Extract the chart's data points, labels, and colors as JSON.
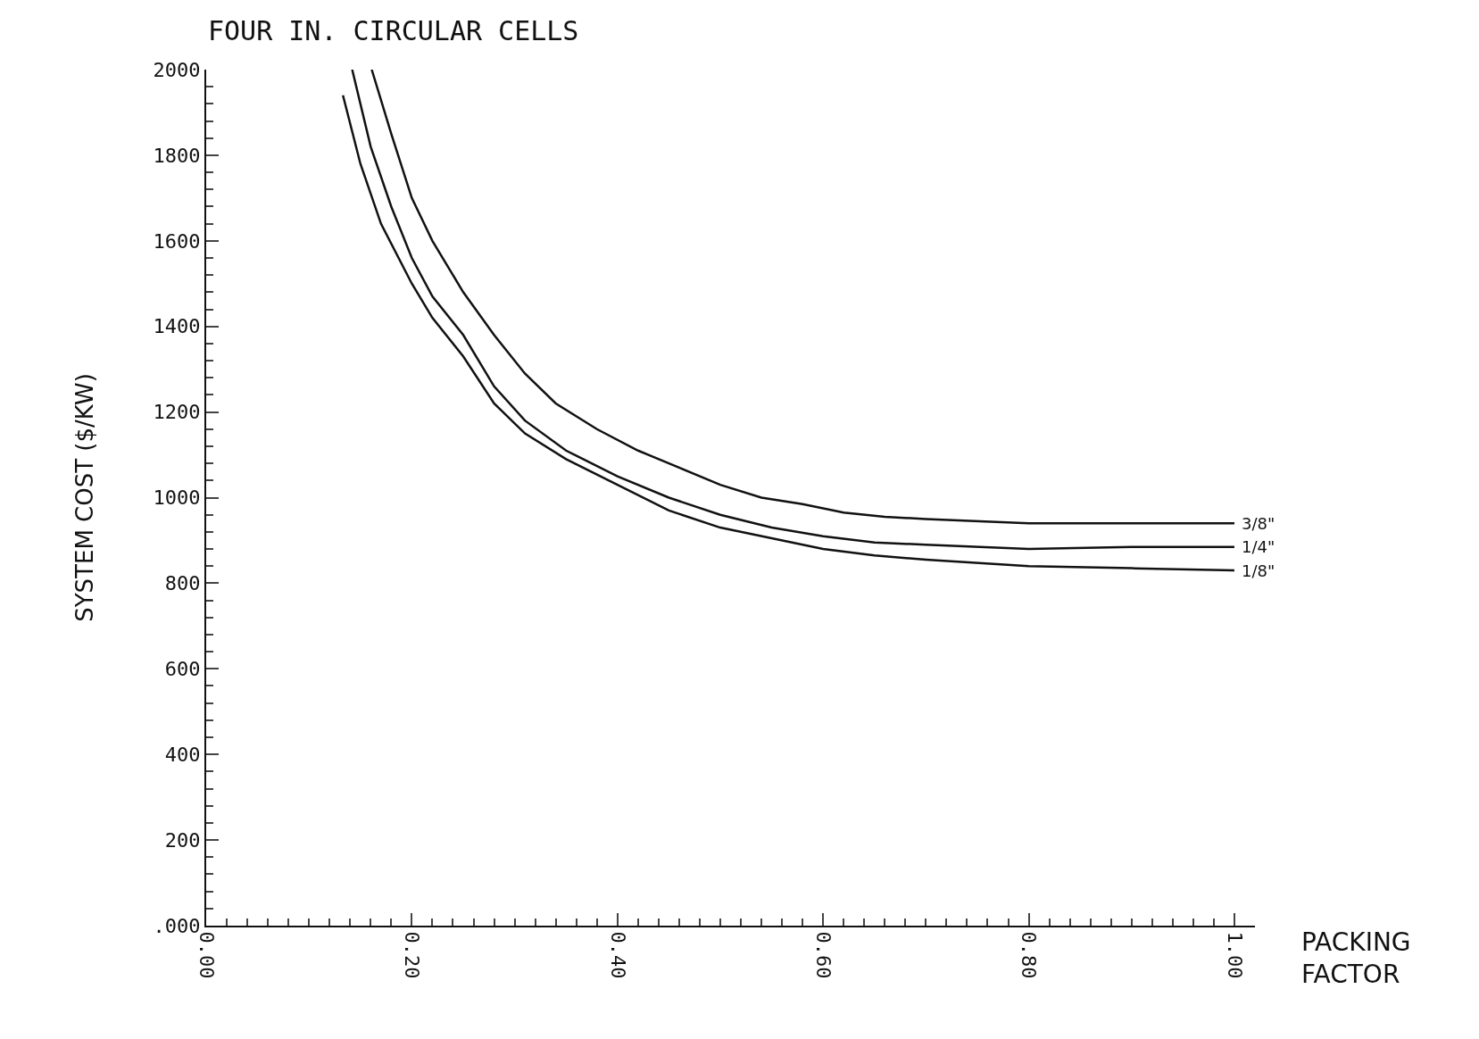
{
  "chart_data": {
    "type": "line",
    "title": "FOUR IN. CIRCULAR CELLS",
    "xlabel": "PACKING FACTOR",
    "ylabel": "SYSTEM COST ($/KW)",
    "xlim": [
      0,
      1.02
    ],
    "ylim": [
      0,
      2000
    ],
    "grid": false,
    "legend": false,
    "marker": "none",
    "line_style": "solid",
    "xticks": [
      {
        "value": 0,
        "label": "0.00"
      },
      {
        "value": 0.2,
        "label": "0.20"
      },
      {
        "value": 0.4,
        "label": "0.40"
      },
      {
        "value": 0.6,
        "label": "0.60"
      },
      {
        "value": 0.8,
        "label": "0.80"
      },
      {
        "value": 1,
        "label": "1.00"
      },
      {
        "value": 0.02,
        "label": null
      },
      {
        "value": 0.04,
        "label": null
      },
      {
        "value": 0.06,
        "label": null
      },
      {
        "value": 0.08,
        "label": null
      },
      {
        "value": 0.1,
        "label": null
      },
      {
        "value": 0.12,
        "label": null
      },
      {
        "value": 0.14,
        "label": null
      },
      {
        "value": 0.16,
        "label": null
      },
      {
        "value": 0.18,
        "label": null
      },
      {
        "value": 0.22,
        "label": null
      },
      {
        "value": 0.24,
        "label": null
      },
      {
        "value": 0.26,
        "label": null
      },
      {
        "value": 0.28,
        "label": null
      },
      {
        "value": 0.3,
        "label": null
      },
      {
        "value": 0.32,
        "label": null
      },
      {
        "value": 0.34,
        "label": null
      },
      {
        "value": 0.36,
        "label": null
      },
      {
        "value": 0.38,
        "label": null
      },
      {
        "value": 0.42,
        "label": null
      },
      {
        "value": 0.44,
        "label": null
      },
      {
        "value": 0.46,
        "label": null
      },
      {
        "value": 0.48,
        "label": null
      },
      {
        "value": 0.5,
        "label": null
      },
      {
        "value": 0.52,
        "label": null
      },
      {
        "value": 0.54,
        "label": null
      },
      {
        "value": 0.56,
        "label": null
      },
      {
        "value": 0.58,
        "label": null
      },
      {
        "value": 0.62,
        "label": null
      },
      {
        "value": 0.64,
        "label": null
      },
      {
        "value": 0.66,
        "label": null
      },
      {
        "value": 0.68,
        "label": null
      },
      {
        "value": 0.7,
        "label": null
      },
      {
        "value": 0.72,
        "label": null
      },
      {
        "value": 0.74,
        "label": null
      },
      {
        "value": 0.76,
        "label": null
      },
      {
        "value": 0.78,
        "label": null
      },
      {
        "value": 0.82,
        "label": null
      },
      {
        "value": 0.84,
        "label": null
      },
      {
        "value": 0.86,
        "label": null
      },
      {
        "value": 0.88,
        "label": null
      },
      {
        "value": 0.9,
        "label": null
      },
      {
        "value": 0.92,
        "label": null
      },
      {
        "value": 0.94,
        "label": null
      },
      {
        "value": 0.96,
        "label": null
      },
      {
        "value": 0.98,
        "label": null
      }
    ],
    "yticks": [
      {
        "value": 0,
        "label": ".000"
      },
      200,
      400,
      600,
      800,
      1000,
      1200,
      1400,
      1600,
      1800,
      2000,
      {
        "value": 40,
        "label": null
      },
      {
        "value": 80,
        "label": null
      },
      {
        "value": 120,
        "label": null
      },
      {
        "value": 160,
        "label": null
      },
      {
        "value": 240,
        "label": null
      },
      {
        "value": 280,
        "label": null
      },
      {
        "value": 320,
        "label": null
      },
      {
        "value": 360,
        "label": null
      },
      {
        "value": 440,
        "label": null
      },
      {
        "value": 480,
        "label": null
      },
      {
        "value": 520,
        "label": null
      },
      {
        "value": 560,
        "label": null
      },
      {
        "value": 640,
        "label": null
      },
      {
        "value": 680,
        "label": null
      },
      {
        "value": 720,
        "label": null
      },
      {
        "value": 760,
        "label": null
      },
      {
        "value": 840,
        "label": null
      },
      {
        "value": 880,
        "label": null
      },
      {
        "value": 920,
        "label": null
      },
      {
        "value": 960,
        "label": null
      },
      {
        "value": 1040,
        "label": null
      },
      {
        "value": 1080,
        "label": null
      },
      {
        "value": 1120,
        "label": null
      },
      {
        "value": 1160,
        "label": null
      },
      {
        "value": 1240,
        "label": null
      },
      {
        "value": 1280,
        "label": null
      },
      {
        "value": 1320,
        "label": null
      },
      {
        "value": 1360,
        "label": null
      },
      {
        "value": 1440,
        "label": null
      },
      {
        "value": 1480,
        "label": null
      },
      {
        "value": 1520,
        "label": null
      },
      {
        "value": 1560,
        "label": null
      },
      {
        "value": 1640,
        "label": null
      },
      {
        "value": 1680,
        "label": null
      },
      {
        "value": 1720,
        "label": null
      },
      {
        "value": 1760,
        "label": null
      },
      {
        "value": 1840,
        "label": null
      },
      {
        "value": 1880,
        "label": null
      },
      {
        "value": 1920,
        "label": null
      },
      {
        "value": 1960,
        "label": null
      }
    ],
    "series": [
      {
        "name": "3/8\"",
        "color": "#111111",
        "x": [
          0.161,
          0.18,
          0.2,
          0.22,
          0.25,
          0.28,
          0.31,
          0.34,
          0.38,
          0.42,
          0.46,
          0.5,
          0.54,
          0.58,
          0.62,
          0.66,
          0.7,
          0.8,
          0.9,
          1.0
        ],
        "values": [
          2000,
          1850,
          1700,
          1600,
          1480,
          1380,
          1290,
          1220,
          1160,
          1110,
          1070,
          1030,
          1000,
          985,
          965,
          955,
          950,
          940,
          940,
          940
        ]
      },
      {
        "name": "1/4\"",
        "color": "#111111",
        "x": [
          0.142,
          0.16,
          0.18,
          0.2,
          0.22,
          0.25,
          0.28,
          0.31,
          0.35,
          0.4,
          0.45,
          0.5,
          0.55,
          0.6,
          0.65,
          0.7,
          0.8,
          0.9,
          1.0
        ],
        "values": [
          2000,
          1820,
          1680,
          1560,
          1470,
          1380,
          1260,
          1180,
          1110,
          1050,
          1000,
          960,
          930,
          910,
          895,
          890,
          880,
          885,
          885
        ]
      },
      {
        "name": "1/8\"",
        "color": "#111111",
        "x": [
          0.133,
          0.15,
          0.17,
          0.2,
          0.22,
          0.25,
          0.28,
          0.31,
          0.35,
          0.4,
          0.45,
          0.5,
          0.55,
          0.6,
          0.65,
          0.7,
          0.8,
          0.9,
          1.0
        ],
        "values": [
          1940,
          1780,
          1640,
          1500,
          1420,
          1330,
          1220,
          1150,
          1090,
          1030,
          970,
          930,
          905,
          880,
          865,
          855,
          840,
          835,
          830
        ]
      }
    ]
  }
}
